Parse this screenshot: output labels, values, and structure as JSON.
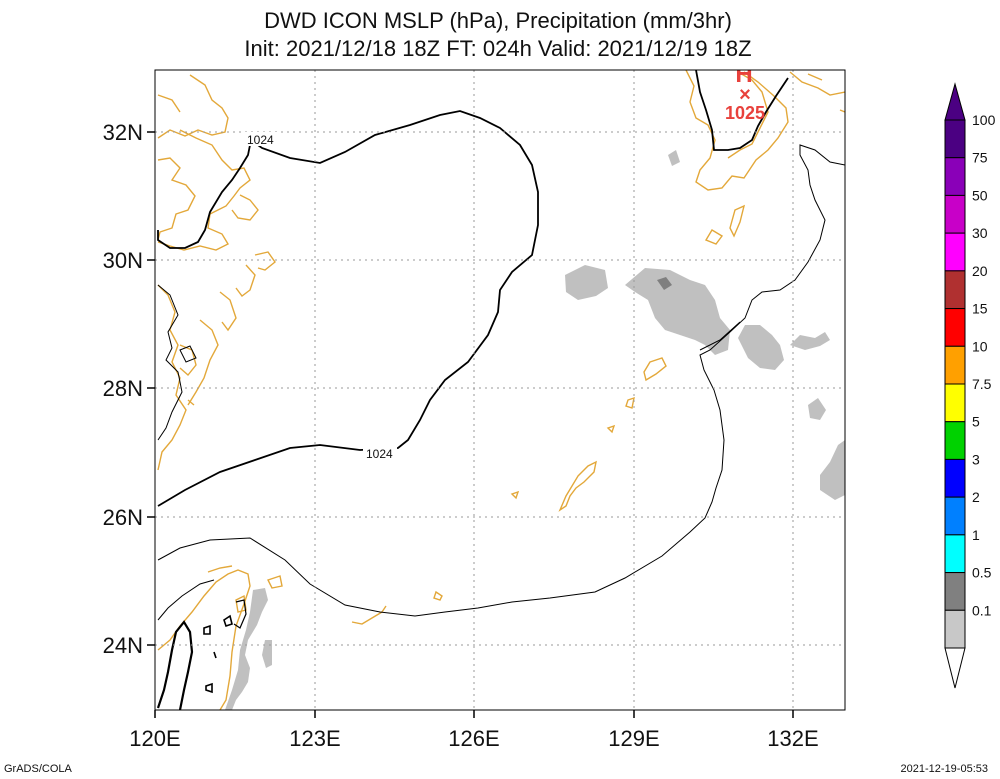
{
  "title_line1": "DWD ICON MSLP (hPa), Precipitation (mm/3hr)",
  "title_line2": "Init: 2021/12/18 18Z  FT: 024h  Valid: 2021/12/19 18Z",
  "lon_labels": [
    "120E",
    "123E",
    "126E",
    "129E",
    "132E"
  ],
  "lat_labels": [
    "32N",
    "30N",
    "28N",
    "26N",
    "24N"
  ],
  "contour_labels": [
    "1024",
    "1024"
  ],
  "high_center": {
    "symbol": "H",
    "marker": "×",
    "value": "1025",
    "color": "#e8413c"
  },
  "colorbar": {
    "labels": [
      "100",
      "75",
      "50",
      "30",
      "20",
      "15",
      "10",
      "7.5",
      "5",
      "3",
      "2",
      "1",
      "0.5",
      "0.1"
    ],
    "colors": [
      "#4b0082",
      "#8a00b8",
      "#c800c8",
      "#ff00ff",
      "#b03030",
      "#ff0000",
      "#ffa000",
      "#ffff00",
      "#00d200",
      "#0000ff",
      "#0080ff",
      "#00ffff",
      "#808080",
      "#c8c8c8"
    ]
  },
  "colors": {
    "coastline": "#e3a83a",
    "isobar": "#000000",
    "precip_light": "#c0c0c0",
    "precip_med": "#7f7f7f",
    "grid": "#9a9a9a"
  },
  "footer_left": "GrADS/COLA",
  "footer_right": "2021-12-19-05:53"
}
